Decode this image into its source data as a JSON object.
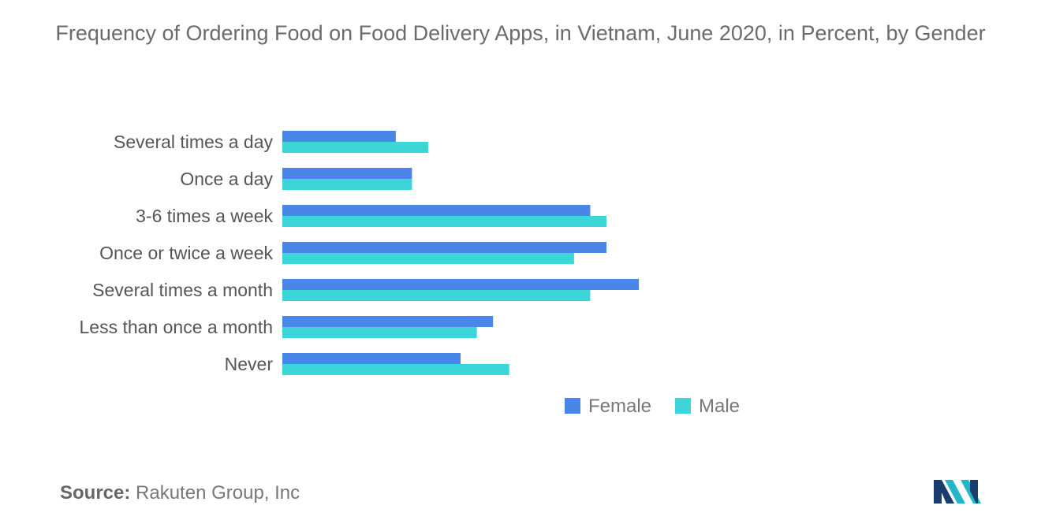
{
  "chart_data": {
    "type": "bar",
    "orientation": "horizontal",
    "title": "Frequency of Ordering Food on Food Delivery Apps, in Vietnam, June 2020, in Percent, by Gender",
    "categories": [
      "Several times a day",
      "Once a day",
      "3-6 times a week",
      "Once or twice a week",
      "Several times a month",
      "Less than once a month",
      "Never"
    ],
    "series": [
      {
        "name": "Female",
        "color": "#4a86e8",
        "values": [
          7,
          8,
          19,
          20,
          22,
          13,
          11
        ]
      },
      {
        "name": "Male",
        "color": "#3dd6d8",
        "values": [
          9,
          8,
          20,
          18,
          19,
          12,
          14
        ]
      }
    ],
    "xlim": [
      0,
      40
    ],
    "grid": false,
    "axis_ticks_visible": false,
    "legend_placement": "bottom-right"
  },
  "source": {
    "label": "Source:",
    "text": "Rakuten Group, Inc"
  },
  "logo": {
    "icon": "mordor-intelligence-logo-icon",
    "colors": [
      "#1a3d6e",
      "#23b5c9"
    ]
  }
}
